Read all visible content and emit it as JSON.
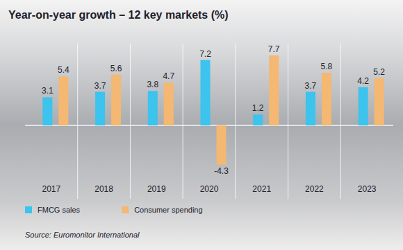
{
  "chart_data": {
    "type": "bar",
    "title": "Year-on-year growth – 12 key markets (%)",
    "categories": [
      "2017",
      "2018",
      "2019",
      "2020",
      "2021",
      "2022",
      "2023"
    ],
    "series": [
      {
        "name": "FMCG sales",
        "color": "#3cc3ee",
        "values": [
          3.1,
          3.7,
          3.8,
          7.2,
          1.2,
          3.7,
          4.2
        ]
      },
      {
        "name": "Consumer spending",
        "color": "#f4b872",
        "values": [
          5.4,
          5.6,
          4.7,
          -4.3,
          7.7,
          5.8,
          5.2
        ]
      }
    ],
    "ylim": [
      -6,
      9
    ],
    "yticks": [
      0
    ],
    "tick_labels": "x",
    "data_labels": true,
    "legend": "bottom-left",
    "annotations": [
      "Source: Euromonitor International"
    ]
  }
}
